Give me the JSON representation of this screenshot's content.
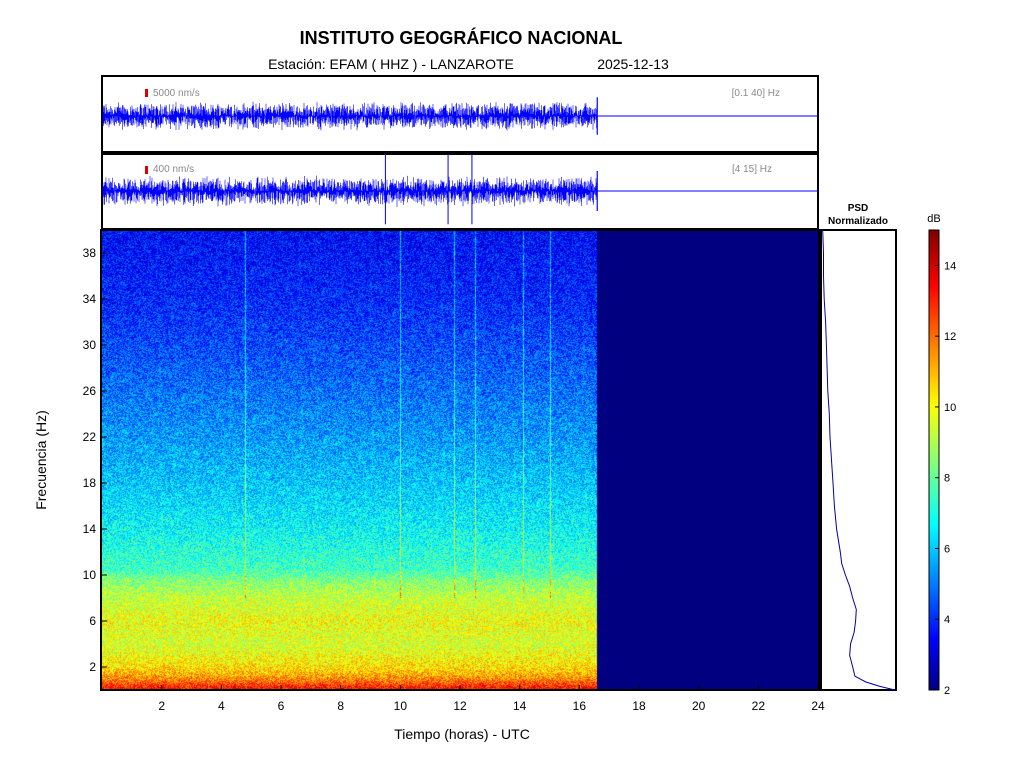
{
  "header": {
    "title": "INSTITUTO GEOGRÁFICO NACIONAL",
    "station": "Estación:  EFAM ( HHZ ) - LANZAROTE",
    "date": "2025-12-13"
  },
  "chart_data": [
    {
      "type": "line",
      "name": "seismogram-broadband",
      "scale_label": "5000 nm/s",
      "band_label": "[0.1 40] Hz",
      "x_range_hours": [
        0,
        24
      ],
      "data_end_hour": 16.6,
      "colors": {
        "trace": "#0000ff",
        "scale_bar": "#e00000"
      }
    },
    {
      "type": "line",
      "name": "seismogram-filtered",
      "scale_label": "400 nm/s",
      "band_label": "[4 15] Hz",
      "x_range_hours": [
        0,
        24
      ],
      "data_end_hour": 16.6,
      "spikes_hours": [
        9.5,
        11.6,
        12.4
      ],
      "colors": {
        "trace": "#0000ff",
        "scale_bar": "#e00000"
      }
    },
    {
      "type": "heatmap",
      "name": "spectrogram",
      "xlabel": "Tiempo (horas) - UTC",
      "ylabel": "Frecuencia  (Hz)",
      "xlim": [
        0,
        24
      ],
      "ylim": [
        0,
        40
      ],
      "xticks": [
        2,
        4,
        6,
        8,
        10,
        12,
        14,
        16,
        18,
        20,
        22,
        24
      ],
      "yticks": [
        2,
        6,
        10,
        14,
        18,
        22,
        26,
        30,
        34,
        38
      ],
      "data_end_hour": 16.6,
      "empty_color": "#000080",
      "level_profile_db": [
        {
          "f": 0,
          "db": 13.5
        },
        {
          "f": 1,
          "db": 11.6
        },
        {
          "f": 2,
          "db": 10.5
        },
        {
          "f": 4,
          "db": 9.6
        },
        {
          "f": 6,
          "db": 10.0
        },
        {
          "f": 8,
          "db": 9.4
        },
        {
          "f": 9.5,
          "db": 8.6
        },
        {
          "f": 10.5,
          "db": 7.7
        },
        {
          "f": 14,
          "db": 6.9
        },
        {
          "f": 18,
          "db": 6.2
        },
        {
          "f": 22,
          "db": 5.6
        },
        {
          "f": 26,
          "db": 5.1
        },
        {
          "f": 30,
          "db": 4.6
        },
        {
          "f": 34,
          "db": 4.1
        },
        {
          "f": 40,
          "db": 3.7
        }
      ],
      "vertical_streaks_hours": [
        4.8,
        10.0,
        11.8,
        12.5,
        14.1,
        15.0
      ]
    },
    {
      "type": "line",
      "name": "psd-normalizado",
      "title": "PSD\nNormalizado",
      "ylim": [
        0,
        40
      ],
      "points": [
        {
          "f": 0.0,
          "v": 1.0
        },
        {
          "f": 0.3,
          "v": 0.8
        },
        {
          "f": 0.7,
          "v": 0.6
        },
        {
          "f": 1.2,
          "v": 0.45
        },
        {
          "f": 2.0,
          "v": 0.42
        },
        {
          "f": 3.0,
          "v": 0.38
        },
        {
          "f": 4.0,
          "v": 0.39
        },
        {
          "f": 5.0,
          "v": 0.44
        },
        {
          "f": 6.0,
          "v": 0.46
        },
        {
          "f": 7.0,
          "v": 0.47
        },
        {
          "f": 8.0,
          "v": 0.42
        },
        {
          "f": 9.0,
          "v": 0.38
        },
        {
          "f": 10.0,
          "v": 0.32
        },
        {
          "f": 11.0,
          "v": 0.27
        },
        {
          "f": 12.0,
          "v": 0.25
        },
        {
          "f": 14.0,
          "v": 0.2
        },
        {
          "f": 16.0,
          "v": 0.17
        },
        {
          "f": 18.0,
          "v": 0.15
        },
        {
          "f": 20.0,
          "v": 0.13
        },
        {
          "f": 22.0,
          "v": 0.11
        },
        {
          "f": 24.0,
          "v": 0.1
        },
        {
          "f": 26.0,
          "v": 0.08
        },
        {
          "f": 28.0,
          "v": 0.07
        },
        {
          "f": 30.0,
          "v": 0.06
        },
        {
          "f": 32.0,
          "v": 0.05
        },
        {
          "f": 34.0,
          "v": 0.03
        },
        {
          "f": 36.0,
          "v": 0.02
        },
        {
          "f": 38.0,
          "v": 0.02
        },
        {
          "f": 40.0,
          "v": 0.01
        }
      ],
      "colors": {
        "line": "#0000a0"
      }
    },
    {
      "type": "heatmap",
      "name": "colorbar",
      "label": "dB",
      "ylim": [
        2,
        15
      ],
      "ticks": [
        2,
        4,
        6,
        8,
        10,
        12,
        14
      ],
      "colormap": "jet"
    }
  ]
}
